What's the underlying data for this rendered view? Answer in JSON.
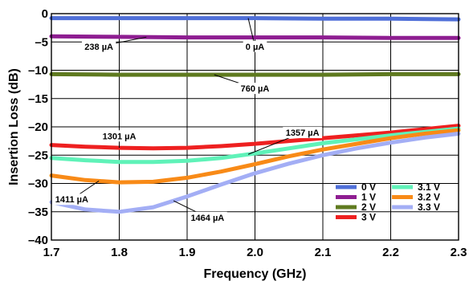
{
  "chart_data": {
    "type": "line",
    "xlabel": "Frequency (GHz)",
    "ylabel": "Insertion Loss (dB)",
    "xlim": [
      1.7,
      2.3
    ],
    "ylim": [
      -40,
      0
    ],
    "xticks": [
      "1.7",
      "1.8",
      "1.9",
      "2.0",
      "2.1",
      "2.2",
      "2.3"
    ],
    "yticks": [
      "0",
      "–5",
      "–10",
      "–15",
      "–20",
      "–25",
      "–30",
      "–35",
      "–40"
    ],
    "grid": true,
    "legend_position": "bottom-right",
    "series": [
      {
        "name": "0 V",
        "color": "#4f6fd8",
        "x": [
          1.7,
          1.8,
          1.9,
          2.0,
          2.1,
          2.2,
          2.3
        ],
        "y": [
          -0.8,
          -0.8,
          -0.8,
          -0.8,
          -0.9,
          -0.9,
          -1.0
        ]
      },
      {
        "name": "1 V",
        "color": "#8e1d91",
        "x": [
          1.7,
          1.8,
          1.9,
          2.0,
          2.1,
          2.2,
          2.3
        ],
        "y": [
          -4.0,
          -4.1,
          -4.2,
          -4.2,
          -4.2,
          -4.3,
          -4.3
        ]
      },
      {
        "name": "2 V",
        "color": "#5f7a1f",
        "x": [
          1.7,
          1.8,
          1.9,
          2.0,
          2.1,
          2.2,
          2.3
        ],
        "y": [
          -10.7,
          -10.8,
          -10.8,
          -10.8,
          -10.8,
          -10.7,
          -10.7
        ]
      },
      {
        "name": "3 V",
        "color": "#ee2020",
        "x": [
          1.7,
          1.75,
          1.8,
          1.85,
          1.9,
          1.95,
          2.0,
          2.05,
          2.1,
          2.15,
          2.2,
          2.25,
          2.3
        ],
        "y": [
          -23.2,
          -23.5,
          -23.7,
          -23.8,
          -23.7,
          -23.4,
          -23.0,
          -22.5,
          -22.0,
          -21.5,
          -21.0,
          -20.4,
          -19.8
        ]
      },
      {
        "name": "3.1 V",
        "color": "#5ff2b8",
        "x": [
          1.7,
          1.75,
          1.8,
          1.85,
          1.9,
          1.95,
          2.0,
          2.05,
          2.1,
          2.15,
          2.2,
          2.25,
          2.3
        ],
        "y": [
          -25.5,
          -25.9,
          -26.2,
          -26.2,
          -26.0,
          -25.5,
          -24.7,
          -23.8,
          -22.9,
          -22.2,
          -21.5,
          -20.9,
          -20.3
        ]
      },
      {
        "name": "3.2 V",
        "color": "#f88a17",
        "x": [
          1.7,
          1.75,
          1.8,
          1.85,
          1.9,
          1.95,
          2.0,
          2.05,
          2.1,
          2.15,
          2.2,
          2.25,
          2.3
        ],
        "y": [
          -28.6,
          -29.4,
          -29.8,
          -29.7,
          -29.0,
          -27.9,
          -26.6,
          -25.2,
          -24.0,
          -23.0,
          -22.0,
          -21.2,
          -20.6
        ]
      },
      {
        "name": "3.3 V",
        "color": "#a3aef5",
        "x": [
          1.7,
          1.75,
          1.8,
          1.85,
          1.9,
          1.95,
          2.0,
          2.05,
          2.1,
          2.15,
          2.2,
          2.25,
          2.3
        ],
        "y": [
          -33.3,
          -34.6,
          -35.0,
          -34.2,
          -32.3,
          -30.2,
          -28.2,
          -26.5,
          -25.0,
          -23.8,
          -22.8,
          -21.9,
          -21.2
        ]
      }
    ],
    "annotations": [
      {
        "text": "0 µA",
        "series": "0 V",
        "x": 1.99,
        "label_x": 2.0,
        "label_y": -5.8
      },
      {
        "text": "238 µA",
        "series": "1 V",
        "x": 1.84,
        "label_x": 1.77,
        "label_y": -5.8
      },
      {
        "text": "760 µA",
        "series": "2 V",
        "x": 1.94,
        "label_x": 2.0,
        "label_y": -13.2
      },
      {
        "text": "1301 µA",
        "series": "3 V",
        "x": 1.8,
        "label_x": 1.8,
        "label_y": -21.6
      },
      {
        "text": "1357 µA",
        "series": "3.1 V",
        "x": 1.99,
        "label_x": 2.07,
        "label_y": -21.0
      },
      {
        "text": "1411 µA",
        "series": "3.2 V",
        "x": 1.77,
        "label_x": 1.73,
        "label_y": -32.8
      },
      {
        "text": "1464 µA",
        "series": "3.3 V",
        "x": 1.88,
        "label_x": 1.93,
        "label_y": -36.0
      }
    ]
  }
}
